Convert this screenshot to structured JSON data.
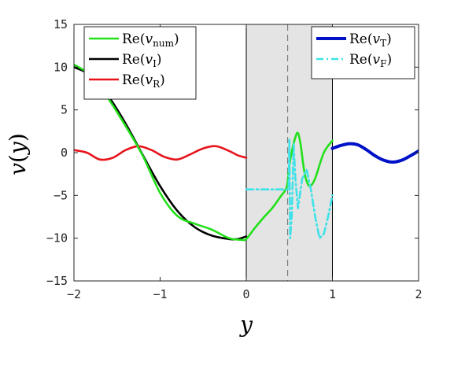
{
  "chart_data": {
    "type": "line",
    "xlabel": "y",
    "ylabel": "v(y)",
    "xlim": [
      -2,
      2
    ],
    "ylim": [
      -15,
      15
    ],
    "xticks": [
      -2,
      -1,
      0,
      1,
      2
    ],
    "xtick_labels": [
      "−2",
      "−1",
      "0",
      "1",
      "2"
    ],
    "yticks": [
      -15,
      -10,
      -5,
      0,
      5,
      10,
      15
    ],
    "ytick_labels": [
      "−15",
      "−10",
      "−5",
      "0",
      "5",
      "10",
      "15"
    ],
    "grid": false,
    "shaded_region": {
      "x": [
        0,
        1
      ],
      "color": "#e4e4e4"
    },
    "dashed_vline": {
      "x": 0.48,
      "color": "#808080"
    },
    "legends": [
      {
        "placement": "top-left",
        "entries": [
          {
            "series": "num",
            "label": "Re(v_num)",
            "base": "Re(",
            "var": "v",
            "sub": "num",
            "close": ")"
          },
          {
            "series": "I",
            "label": "Re(v_I)",
            "base": "Re(",
            "var": "v",
            "sub": "I",
            "close": ")"
          },
          {
            "series": "R",
            "label": "Re(v_R)",
            "base": "Re(",
            "var": "v",
            "sub": "R",
            "close": ")"
          }
        ]
      },
      {
        "placement": "top-right",
        "entries": [
          {
            "series": "T",
            "label": "Re(v_T)",
            "base": "Re(",
            "var": "v",
            "sub": "T",
            "close": ")"
          },
          {
            "series": "F",
            "label": "Re(v_F)",
            "base": "Re(",
            "var": "v",
            "sub": "F",
            "close": ")"
          }
        ]
      }
    ],
    "series": [
      {
        "id": "I",
        "name": "Re(v_I)",
        "color": "#000000",
        "dash": "solid",
        "x": [
          -2.0,
          -1.8,
          -1.6,
          -1.4,
          -1.2,
          -1.0,
          -0.8,
          -0.6,
          -0.4,
          -0.2,
          -0.1,
          0.0
        ],
        "y": [
          10.0,
          9.0,
          6.6,
          3.4,
          -0.3,
          -3.9,
          -6.8,
          -8.7,
          -9.7,
          -10.1,
          -10.1,
          -9.8
        ]
      },
      {
        "id": "R",
        "name": "Re(v_R)",
        "color": "#e8141c",
        "dash": "solid",
        "x": [
          -2.0,
          -1.85,
          -1.7,
          -1.55,
          -1.4,
          -1.25,
          -1.1,
          -0.95,
          -0.8,
          -0.65,
          -0.5,
          -0.35,
          -0.2,
          -0.1,
          0.0
        ],
        "y": [
          0.3,
          0.0,
          -0.8,
          -0.6,
          0.3,
          0.75,
          0.3,
          -0.5,
          -0.8,
          -0.2,
          0.5,
          0.75,
          0.2,
          -0.3,
          -0.6
        ]
      },
      {
        "id": "num",
        "name": "Re(v_num)",
        "color": "#22e01a",
        "dash": "solid",
        "x": [
          -2.0,
          -1.8,
          -1.6,
          -1.4,
          -1.2,
          -1.0,
          -0.8,
          -0.6,
          -0.4,
          -0.2,
          -0.05,
          0.0,
          0.1,
          0.2,
          0.3,
          0.4,
          0.47,
          0.5,
          0.53,
          0.57,
          0.6,
          0.63,
          0.67,
          0.7,
          0.74,
          0.8,
          0.9,
          1.0
        ],
        "y": [
          10.3,
          9.0,
          6.3,
          3.1,
          -0.4,
          -4.7,
          -7.4,
          -8.3,
          -9.0,
          -10.0,
          -10.2,
          -10.1,
          -8.8,
          -7.6,
          -6.5,
          -5.1,
          -4.0,
          -1.5,
          0.2,
          1.8,
          2.3,
          1.0,
          -2.0,
          -3.3,
          -3.9,
          -3.0,
          0.0,
          1.4
        ]
      },
      {
        "id": "T",
        "name": "Re(v_T)",
        "color": "#0012c8",
        "dash": "solid",
        "x": [
          1.0,
          1.1,
          1.2,
          1.3,
          1.4,
          1.5,
          1.6,
          1.7,
          1.8,
          1.9,
          2.0
        ],
        "y": [
          0.5,
          0.85,
          1.05,
          0.9,
          0.3,
          -0.4,
          -0.9,
          -1.1,
          -0.9,
          -0.4,
          0.2
        ]
      },
      {
        "id": "F",
        "name": "Re(v_F)",
        "color": "#3ee2e8",
        "dash": "dashdot",
        "x": [
          0.0,
          0.2,
          0.4,
          0.46,
          0.49,
          0.5,
          0.51,
          0.53,
          0.55,
          0.57,
          0.6,
          0.65,
          0.7,
          0.75,
          0.8,
          0.85,
          0.9,
          0.95,
          1.0
        ],
        "y": [
          -4.3,
          -4.3,
          -4.3,
          -4.3,
          -4.3,
          1.5,
          -10.0,
          -7.0,
          1.0,
          -3.0,
          -6.5,
          -3.0,
          -2.0,
          -4.3,
          -7.5,
          -10.0,
          -9.5,
          -7.5,
          -5.0
        ]
      }
    ]
  }
}
